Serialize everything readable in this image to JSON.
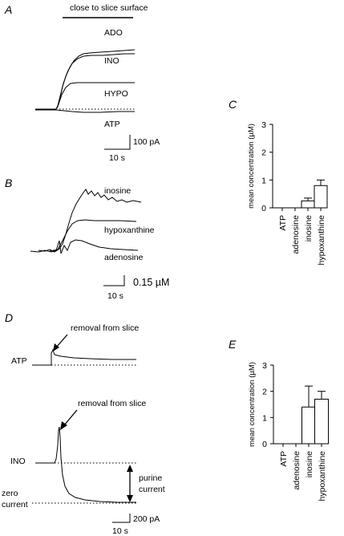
{
  "panels": {
    "a": {
      "letter": "A",
      "condition_label": "close to slice surface",
      "traces": [
        "ADO",
        "INO",
        "HYPO",
        "ATP"
      ],
      "scale_y": "100 pA",
      "scale_x": "10 s"
    },
    "b": {
      "letter": "B",
      "traces": [
        "inosine",
        "hypoxanthine",
        "adenosine"
      ],
      "scale_y": "0.15 µM",
      "scale_x": "10 s"
    },
    "c": {
      "letter": "C"
    },
    "d": {
      "letter": "D",
      "upper_trace": "ATP",
      "upper_annotation": "removal from slice",
      "lower_trace": "INO",
      "lower_annotation": "removal from slice",
      "baseline_label_line1": "zero",
      "baseline_label_line2": "current",
      "current_label_line1": "purine",
      "current_label_line2": "current",
      "scale_y": "200 pA",
      "scale_x": "10 s"
    },
    "e": {
      "letter": "E"
    }
  },
  "chart_data": [
    {
      "panel": "C",
      "type": "bar",
      "categories": [
        "ATP",
        "adenosine",
        "inosine",
        "hypoxanthine"
      ],
      "values": [
        0,
        0,
        0.25,
        0.8
      ],
      "errors": [
        0,
        0,
        0.1,
        0.2
      ],
      "xlabel": "",
      "ylabel": "mean concentration (µM)",
      "ylim": [
        0,
        3
      ],
      "yticks": [
        0,
        1,
        2,
        3
      ],
      "grid": false
    },
    {
      "panel": "E",
      "type": "bar",
      "categories": [
        "ATP",
        "adenosine",
        "inosine",
        "hypoxanthine"
      ],
      "values": [
        0,
        0,
        1.4,
        1.7
      ],
      "errors": [
        0,
        0,
        0.8,
        0.3
      ],
      "xlabel": "",
      "ylabel": "mean concentration (µM)",
      "ylim": [
        0,
        3
      ],
      "yticks": [
        0,
        1,
        2,
        3
      ],
      "grid": false
    }
  ]
}
